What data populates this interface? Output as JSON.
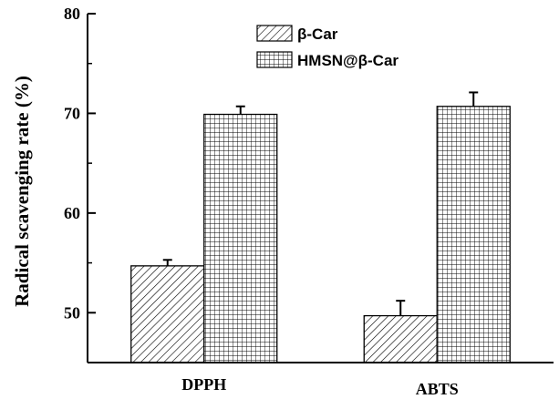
{
  "chart_data": {
    "type": "bar",
    "categories": [
      "DPPH",
      "ABTS"
    ],
    "series": [
      {
        "name": "β-Car",
        "values": [
          54.7,
          49.7
        ],
        "errors": [
          0.6,
          1.5
        ],
        "pattern": "diagonal-hatch"
      },
      {
        "name": "HMSN@β-Car",
        "values": [
          69.9,
          70.7
        ],
        "errors": [
          0.8,
          1.4
        ],
        "pattern": "grid-hatch"
      }
    ],
    "title": "",
    "xlabel": "",
    "ylabel": "Radical scavenging rate (%)",
    "ylim": [
      45,
      80
    ],
    "yticks": [
      50,
      60,
      70,
      80
    ],
    "yticks_minor": [
      55,
      65,
      75
    ],
    "grid": false,
    "legend": "top-center"
  }
}
